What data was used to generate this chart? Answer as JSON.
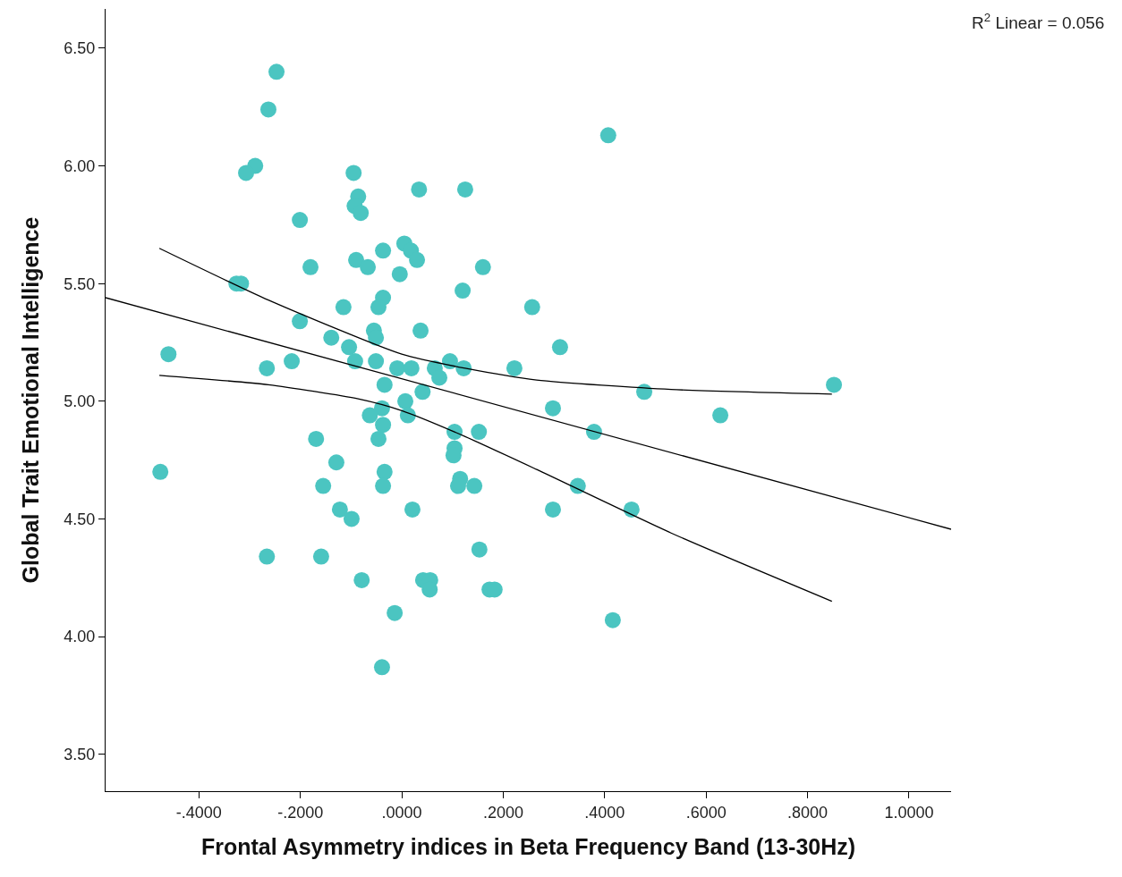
{
  "chart_data": {
    "type": "scatter",
    "xlabel": "Frontal Asymmetry indices in Beta Frequency Band (13-30Hz)",
    "ylabel": "Global Trait Emotional Intelligence",
    "annotations": [
      "R$^{2}$ Linear = 0.056"
    ],
    "xlim": [
      -0.584,
      1.083
    ],
    "ylim": [
      3.343,
      6.667
    ],
    "xticks": [
      {
        "value": -0.4,
        "label": "-.4000"
      },
      {
        "value": -0.2,
        "label": "-.2000"
      },
      {
        "value": 0,
        "label": ".0000"
      },
      {
        "value": 0.2,
        "label": ".2000"
      },
      {
        "value": 0.4,
        "label": ".4000"
      },
      {
        "value": 0.6,
        "label": ".6000"
      },
      {
        "value": 0.8,
        "label": ".8000"
      },
      {
        "value": 1,
        "label": "1.0000"
      }
    ],
    "yticks": [
      {
        "value": 3.5,
        "label": "3.50"
      },
      {
        "value": 4,
        "label": "4.00"
      },
      {
        "value": 4.5,
        "label": "4.50"
      },
      {
        "value": 5,
        "label": "5.00"
      },
      {
        "value": 5.5,
        "label": "5.50"
      },
      {
        "value": 6,
        "label": "6.00"
      },
      {
        "value": 6.5,
        "label": "6.50"
      }
    ],
    "grid": false,
    "marker": "circle",
    "series": [
      {
        "color": "#4bc5c1",
        "x": [
          -0.247,
          -0.263,
          -0.289,
          -0.307,
          0.407,
          -0.095,
          -0.086,
          -0.093,
          -0.081,
          0.034,
          0.125,
          -0.201,
          -0.18,
          -0.326,
          -0.317,
          -0.09,
          -0.067,
          -0.037,
          0.005,
          0.018,
          0.03,
          -0.004,
          0.16,
          0.12,
          -0.037,
          -0.046,
          -0.115,
          0.257,
          -0.201,
          0.037,
          -0.055,
          -0.051,
          -0.139,
          -0.104,
          0.312,
          -0.46,
          -0.217,
          -0.092,
          -0.051,
          -0.266,
          -0.009,
          0.019,
          0.095,
          0.065,
          0.122,
          0.222,
          0.074,
          -0.034,
          0.852,
          0.041,
          0.478,
          0.007,
          0.298,
          -0.039,
          -0.063,
          0.012,
          0.628,
          -0.037,
          0.104,
          0.152,
          0.379,
          -0.046,
          -0.169,
          0.104,
          0.102,
          -0.129,
          -0.476,
          -0.034,
          0.115,
          0.111,
          -0.155,
          -0.037,
          0.143,
          0.347,
          -0.122,
          -0.099,
          0.021,
          0.298,
          0.453,
          0.153,
          -0.266,
          -0.159,
          -0.079,
          0.042,
          0.056,
          0.055,
          0.173,
          0.183,
          -0.014,
          0.416,
          -0.039
        ],
        "values": [
          6.4,
          6.24,
          6.0,
          5.97,
          6.13,
          5.97,
          5.87,
          5.83,
          5.8,
          5.9,
          5.9,
          5.77,
          5.57,
          5.5,
          5.5,
          5.6,
          5.57,
          5.64,
          5.67,
          5.64,
          5.6,
          5.54,
          5.57,
          5.47,
          5.44,
          5.4,
          5.4,
          5.4,
          5.34,
          5.3,
          5.3,
          5.27,
          5.27,
          5.23,
          5.23,
          5.2,
          5.17,
          5.17,
          5.17,
          5.14,
          5.14,
          5.14,
          5.17,
          5.14,
          5.14,
          5.14,
          5.1,
          5.07,
          5.07,
          5.04,
          5.04,
          5.0,
          4.97,
          4.97,
          4.94,
          4.94,
          4.94,
          4.9,
          4.87,
          4.87,
          4.87,
          4.84,
          4.84,
          4.8,
          4.77,
          4.74,
          4.7,
          4.7,
          4.67,
          4.64,
          4.64,
          4.64,
          4.64,
          4.64,
          4.54,
          4.5,
          4.54,
          4.54,
          4.54,
          4.37,
          4.34,
          4.34,
          4.24,
          4.24,
          4.24,
          4.2,
          4.2,
          4.2,
          4.1,
          4.07,
          3.87
        ]
      },
      {
        "type": "line",
        "color": "#000000",
        "marker": "none",
        "x": [
          -0.584,
          1.083
        ],
        "values": [
          5.44,
          4.456
        ]
      },
      {
        "type": "line",
        "color": "#000000",
        "marker": "none",
        "x": [
          -0.478,
          -0.263,
          0,
          0.125,
          0.266,
          0.531,
          0.848
        ],
        "values": [
          5.65,
          5.43,
          5.2,
          5.14,
          5.09,
          5.05,
          5.03
        ]
      },
      {
        "type": "line",
        "color": "#000000",
        "marker": "none",
        "x": [
          -0.478,
          -0.263,
          -0.086,
          0,
          0.125,
          0.266,
          0.531,
          0.848
        ],
        "values": [
          5.11,
          5.07,
          5.01,
          4.96,
          4.85,
          4.71,
          4.44,
          4.15
        ]
      }
    ]
  }
}
